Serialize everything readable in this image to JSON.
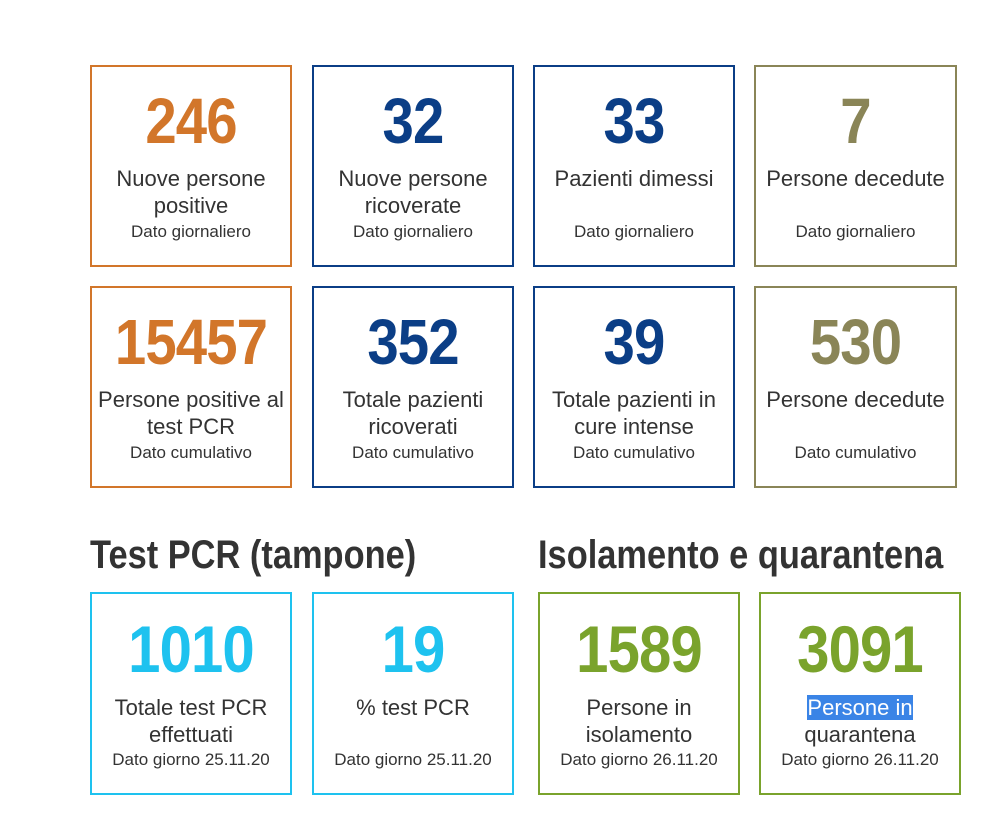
{
  "colors": {
    "orange": "#d2762a",
    "navy": "#0b3e86",
    "olive": "#8a8557",
    "cyan": "#1ec2ef",
    "green": "#7aa32c",
    "text": "#333333"
  },
  "daily": [
    {
      "value": "246",
      "label": "Nuove persone positive",
      "sub": "Dato giornaliero"
    },
    {
      "value": "32",
      "label": "Nuove persone ricoverate",
      "sub": "Dato giornaliero"
    },
    {
      "value": "33",
      "label": "Pazienti dimessi",
      "sub": "Dato giornaliero"
    },
    {
      "value": "7",
      "label": "Persone decedute",
      "sub": "Dato giornaliero"
    }
  ],
  "cumulative": [
    {
      "value": "15457",
      "label": "Persone positive al test PCR",
      "sub": "Dato cumulativo"
    },
    {
      "value": "352",
      "label": "Totale pazienti ricoverati",
      "sub": "Dato cumulativo"
    },
    {
      "value": "39",
      "label": "Totale pazienti in cure intense",
      "sub": "Dato cumulativo"
    },
    {
      "value": "530",
      "label": "Persone decedute",
      "sub": "Dato cumulativo"
    }
  ],
  "test_section": {
    "title": "Test PCR (tampone)",
    "cards": [
      {
        "value": "1010",
        "label": "Totale test PCR effettuati",
        "sub": "Dato giorno 25.11.20"
      },
      {
        "value": "19",
        "label": "% test PCR",
        "sub": "Dato giorno 25.11.20"
      }
    ]
  },
  "isolation_section": {
    "title": "Isolamento e quarantena",
    "cards": [
      {
        "value": "1589",
        "label": "Persone in isolamento",
        "sub": "Dato giorno 26.11.20"
      },
      {
        "value": "3091",
        "label_highlight": "Persone in",
        "label_rest": "quarantena",
        "sub": "Dato giorno 26.11.20"
      }
    ]
  }
}
